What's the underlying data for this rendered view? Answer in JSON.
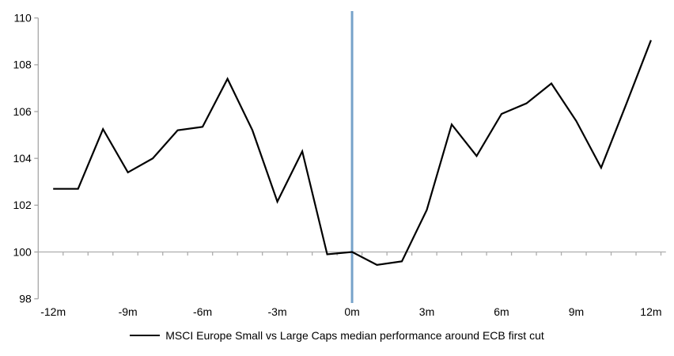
{
  "chart_data": {
    "type": "line",
    "title": "",
    "xlabel": "",
    "ylabel": "",
    "x_months": [
      -12,
      -11,
      -10,
      -9,
      -8,
      -7,
      -6,
      -5,
      -4,
      -3,
      -2,
      -1,
      0,
      1,
      2,
      3,
      4,
      5,
      6,
      7,
      8,
      9,
      10,
      11,
      12
    ],
    "series": [
      {
        "name": "MSCI Europe Small vs Large Caps median performance around ECB first cut",
        "color": "#000000",
        "values": [
          102.7,
          102.7,
          105.25,
          103.4,
          104.0,
          105.2,
          105.35,
          107.4,
          105.2,
          102.15,
          104.3,
          99.9,
          100.0,
          99.45,
          99.6,
          101.8,
          105.45,
          104.1,
          105.9,
          106.35,
          107.2,
          105.6,
          103.6,
          106.3,
          109.05
        ]
      }
    ],
    "ylim": [
      98,
      110
    ],
    "y_ticks": [
      110,
      108,
      106,
      104,
      102,
      100,
      98
    ],
    "x_tick_values": [
      -12,
      -9,
      -6,
      -3,
      0,
      3,
      6,
      9,
      12
    ],
    "x_tick_labels": [
      "-12m",
      "-9m",
      "-6m",
      "-3m",
      "0m",
      "3m",
      "6m",
      "9m",
      "12m"
    ],
    "x_axis_crosses_at": 100,
    "minor_tick_step_months": 1,
    "vline": {
      "x": 0,
      "color": "#76A2C9"
    },
    "colors": {
      "axis": "#A6A6A6",
      "baseline": "#ADADAD",
      "series": "#000000"
    },
    "grid": false,
    "legend_position": "bottom-center"
  },
  "legend": {
    "label": "MSCI Europe Small vs Large Caps median performance around ECB first cut"
  }
}
